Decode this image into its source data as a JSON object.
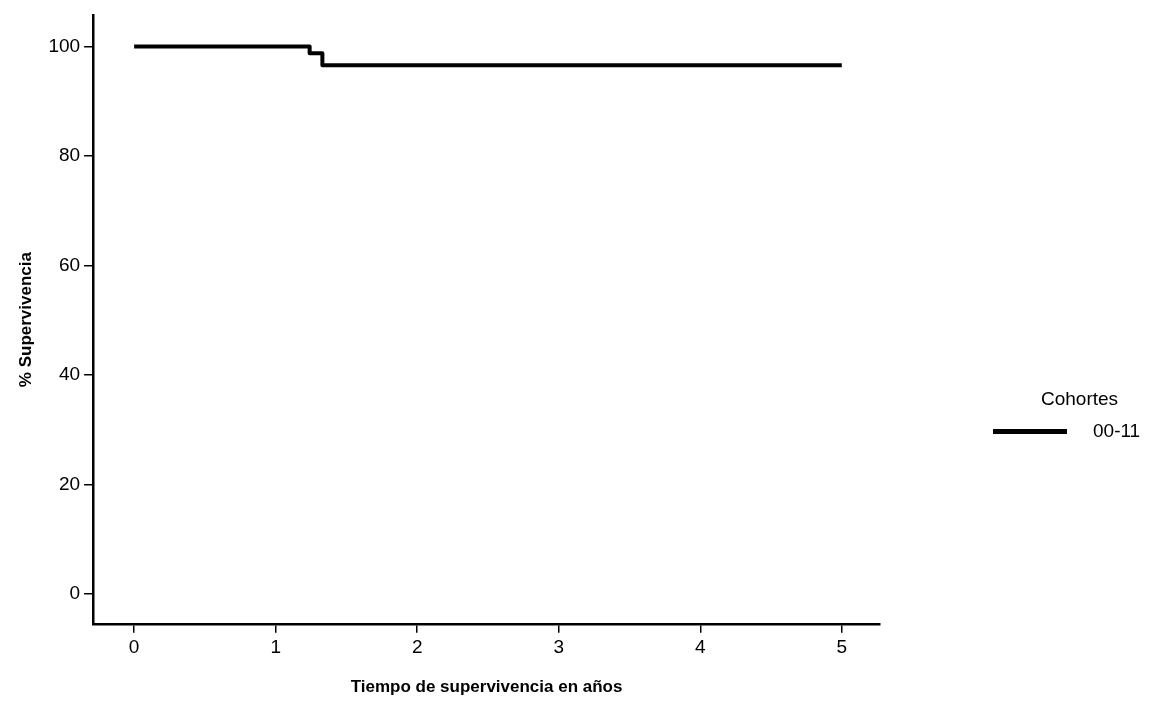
{
  "chart_data": {
    "type": "step",
    "xlabel": "Tiempo de supervivencia en años",
    "ylabel": "% Supervivencia",
    "legend_title": "Cohortes",
    "legend": "right",
    "x": [
      0,
      1.24,
      1.33,
      5
    ],
    "series": [
      {
        "name": "00-11",
        "color": "#000000",
        "values": [
          100,
          98.8,
          96.6,
          96.6
        ]
      }
    ],
    "xlim": [
      -0.29,
      5.27
    ],
    "xticks": [
      0,
      1,
      2,
      3,
      4,
      5
    ],
    "ylim": [
      -5.5,
      105.7
    ],
    "yticks": [
      0,
      20,
      40,
      60,
      80,
      100
    ],
    "grid": false,
    "marker": "none",
    "line_style": "solid"
  }
}
